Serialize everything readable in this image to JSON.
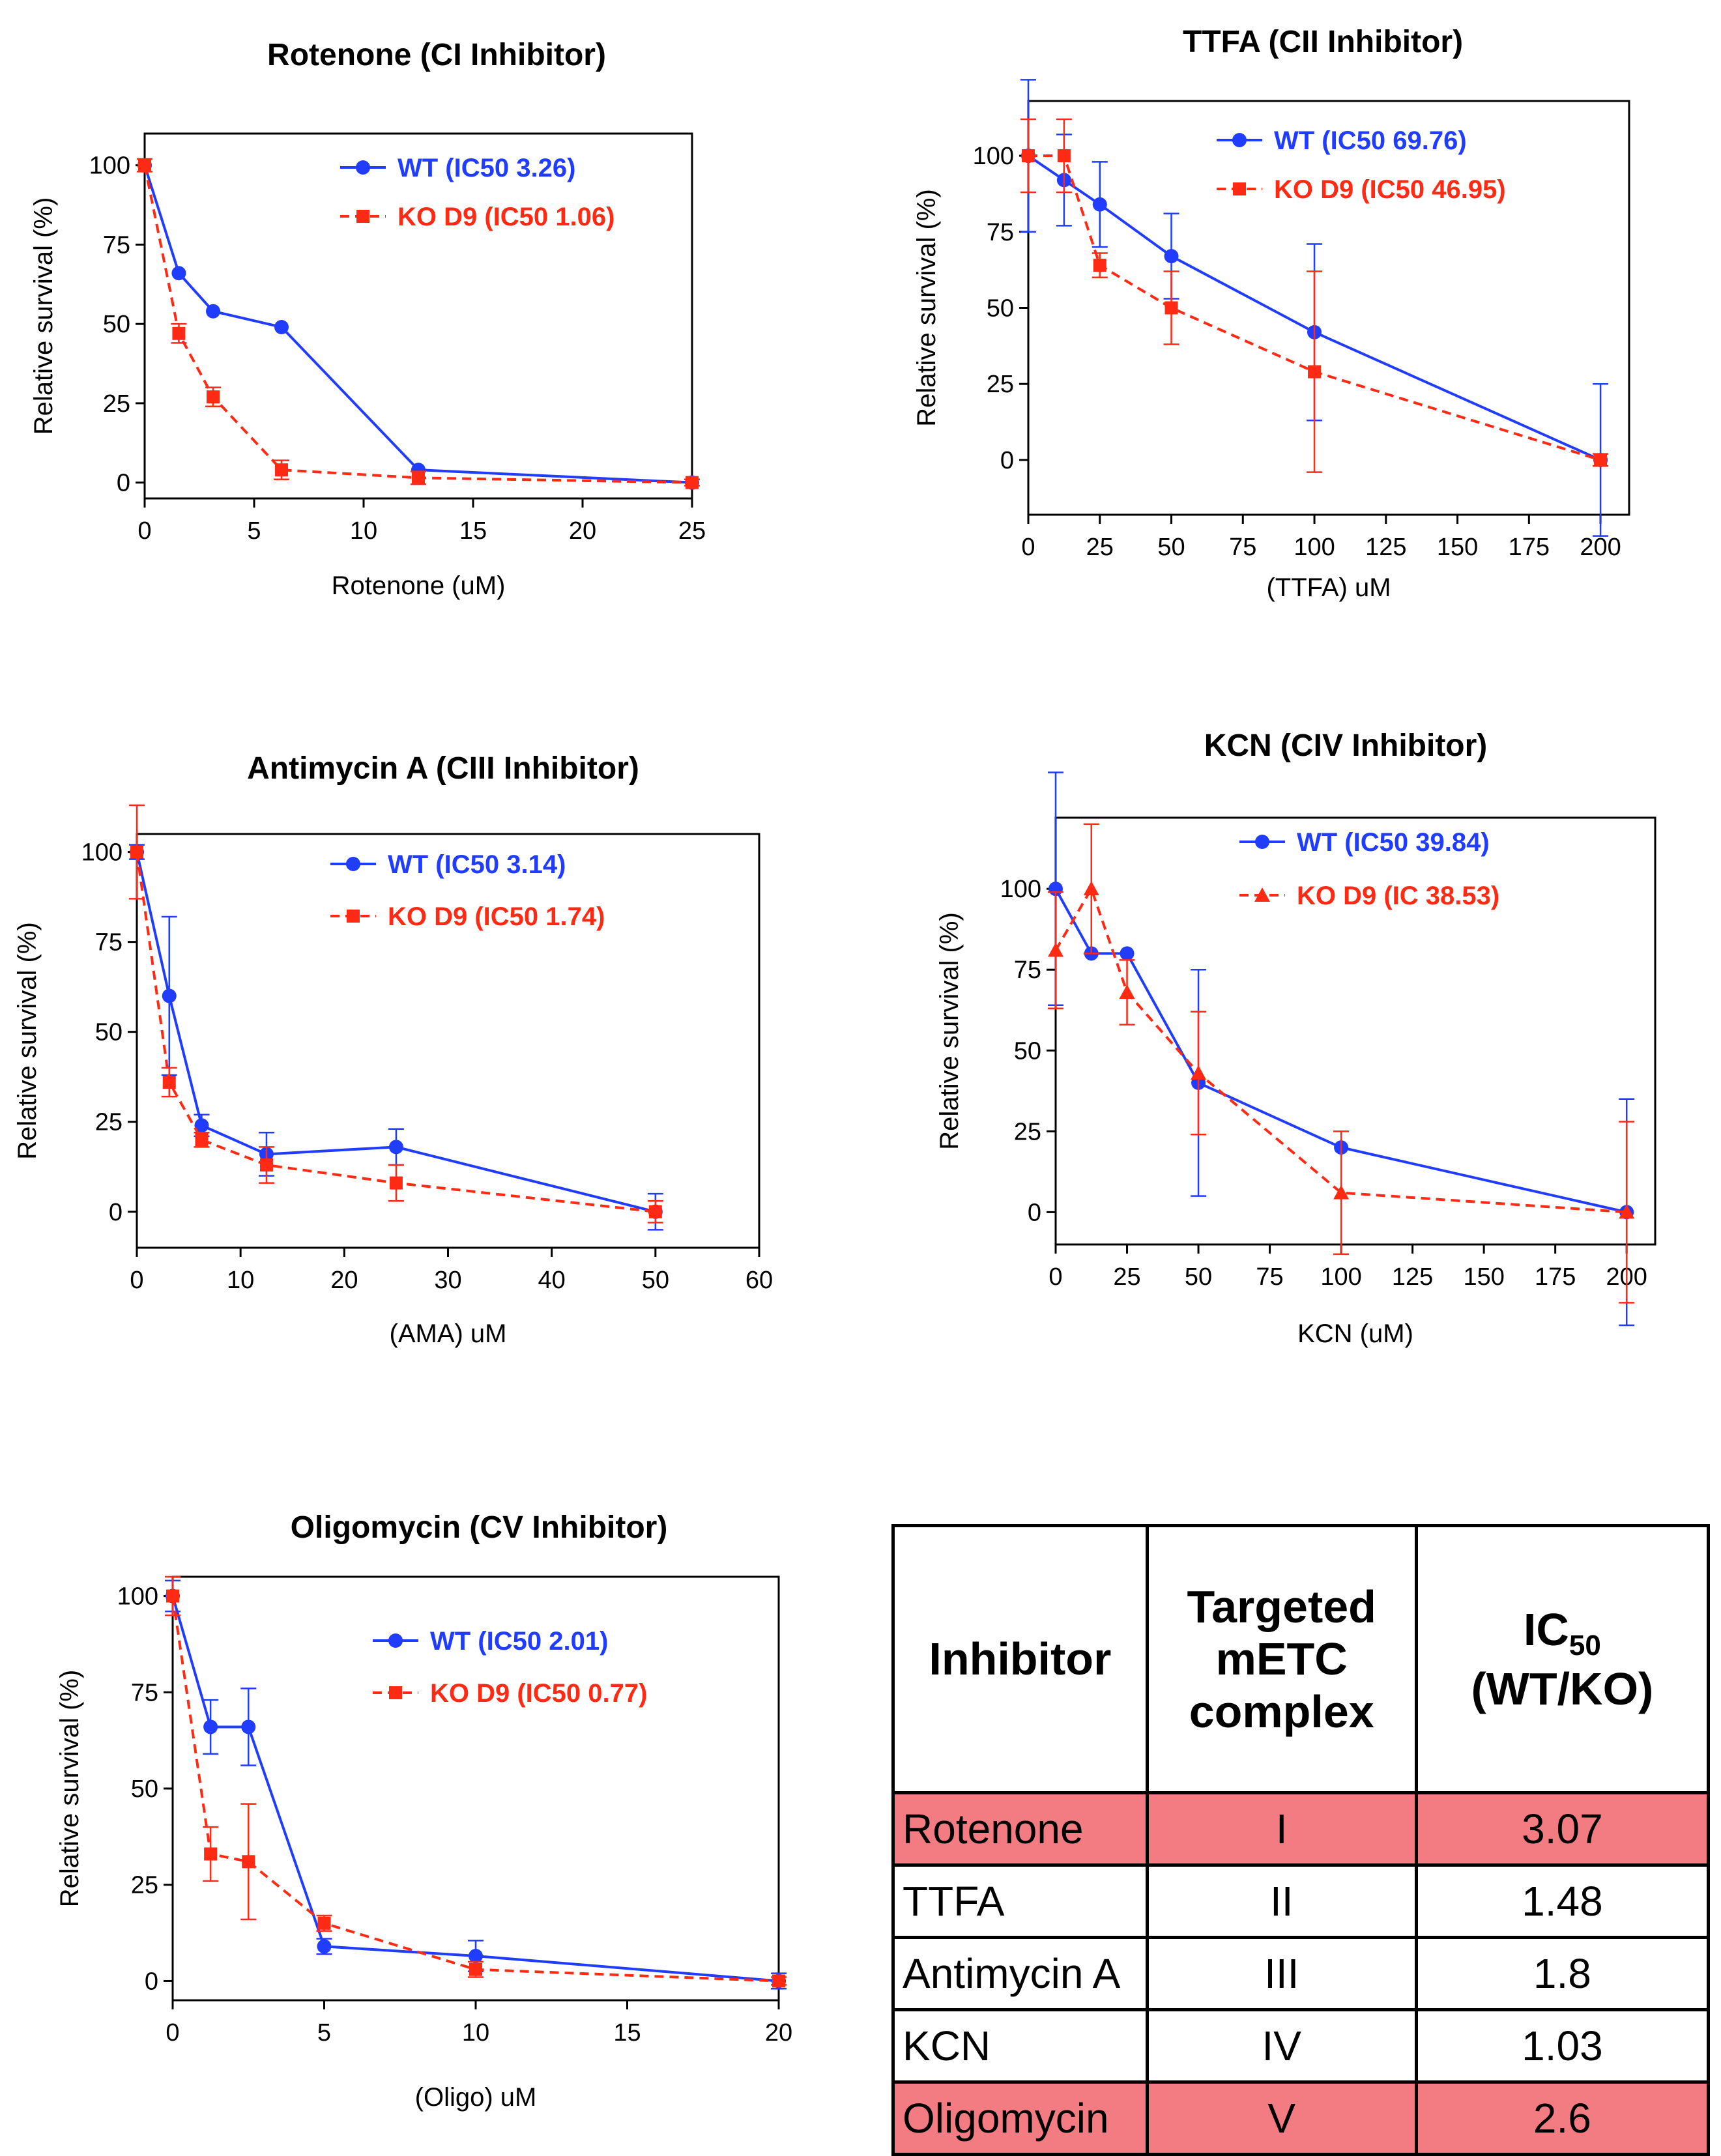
{
  "colors": {
    "wt": "#1f3cff",
    "ko": "#ff2a14",
    "highlight": "#f37c83"
  },
  "charts": [
    {
      "title": "Rotenone (CI Inhibitor)",
      "xlabel": "Rotenone (uM)",
      "ylabel": "Relative survival (%)",
      "chart_data": {
        "type": "line",
        "title": "Rotenone (CI Inhibitor)",
        "xlabel": "Rotenone (uM)",
        "ylabel": "Relative survival (%)",
        "xlim": [
          0,
          25
        ],
        "ylim": [
          -5,
          110
        ],
        "xticks": [
          0,
          5,
          10,
          15,
          20,
          25
        ],
        "yticks": [
          0,
          25,
          50,
          75,
          100
        ],
        "legend": "top-right",
        "series": [
          {
            "name": "WT (IC50 3.26)",
            "marker": "circle",
            "x": [
              0,
              1.56,
              3.125,
              6.25,
              12.5,
              25
            ],
            "y": [
              100,
              66,
              54,
              49,
              4,
              0
            ],
            "err": [
              0,
              0,
              0,
              0,
              0,
              0
            ]
          },
          {
            "name": "KO D9 (IC50 1.06)",
            "marker": "square",
            "x": [
              0,
              1.56,
              3.125,
              6.25,
              12.5,
              25
            ],
            "y": [
              100,
              47,
              27,
              4,
              1.5,
              0
            ],
            "err": [
              2,
              3,
              3,
              3,
              2,
              1
            ]
          }
        ]
      }
    },
    {
      "title": "TTFA (CII Inhibitor)",
      "xlabel": "(TTFA) uM",
      "ylabel": "Relative survival (%)",
      "chart_data": {
        "type": "line",
        "title": "TTFA (CII Inhibitor)",
        "xlabel": "(TTFA) uM",
        "ylabel": "Relative survival (%)",
        "xlim": [
          0,
          210
        ],
        "ylim": [
          -18,
          118
        ],
        "xticks": [
          0,
          25,
          50,
          75,
          100,
          125,
          150,
          175,
          200
        ],
        "yticks": [
          0,
          25,
          50,
          75,
          100
        ],
        "legend": "top-right",
        "series": [
          {
            "name": "WT (IC50 69.76)",
            "marker": "circle",
            "x": [
              0,
              12.5,
              25,
              50,
              100,
              200
            ],
            "y": [
              100,
              92,
              84,
              67,
              42,
              0
            ],
            "err": [
              25,
              15,
              14,
              14,
              29,
              25
            ]
          },
          {
            "name": "KO D9 (IC50 46.95)",
            "marker": "square",
            "x": [
              0,
              12.5,
              25,
              50,
              100,
              200
            ],
            "y": [
              100,
              100,
              64,
              50,
              29,
              0
            ],
            "err": [
              12,
              12,
              4,
              12,
              33,
              2
            ]
          }
        ]
      }
    },
    {
      "title": "Antimycin A (CIII Inhibitor)",
      "xlabel": "(AMA) uM",
      "ylabel": "Relative survival (%)",
      "chart_data": {
        "type": "line",
        "title": "Antimycin A (CIII Inhibitor)",
        "xlabel": "(AMA) uM",
        "ylabel": "Relative survival (%)",
        "xlim": [
          0,
          60
        ],
        "ylim": [
          -10,
          105
        ],
        "xticks": [
          0,
          10,
          20,
          30,
          40,
          50,
          60
        ],
        "yticks": [
          0,
          25,
          50,
          75,
          100
        ],
        "legend": "top-right",
        "series": [
          {
            "name": "WT (IC50 3.14)",
            "marker": "circle",
            "x": [
              0,
              3.125,
              6.25,
              12.5,
              25,
              50
            ],
            "y": [
              100,
              60,
              24,
              16,
              18,
              0
            ],
            "err": [
              2,
              22,
              3,
              6,
              5,
              5
            ]
          },
          {
            "name": "KO D9 (IC50 1.74)",
            "marker": "square",
            "x": [
              0,
              3.125,
              6.25,
              12.5,
              25,
              50
            ],
            "y": [
              100,
              36,
              20,
              13,
              8,
              0
            ],
            "err": [
              13,
              4,
              2,
              5,
              5,
              3
            ]
          }
        ]
      }
    },
    {
      "title": "KCN (CIV Inhibitor)",
      "xlabel": "KCN (uM)",
      "ylabel": "Relative survival (%)",
      "chart_data": {
        "type": "line",
        "title": "KCN (CIV Inhibitor)",
        "xlabel": "KCN (uM)",
        "ylabel": "Relative survival (%)",
        "xlim": [
          0,
          210
        ],
        "ylim": [
          -10,
          122
        ],
        "xticks": [
          0,
          25,
          50,
          75,
          100,
          125,
          150,
          175,
          200
        ],
        "yticks": [
          0,
          25,
          50,
          75,
          100
        ],
        "legend": "top-right",
        "series": [
          {
            "name": "WT (IC50 39.84)",
            "marker": "circle",
            "x": [
              0,
              12.5,
              25,
              50,
              100,
              200
            ],
            "y": [
              100,
              80,
              80,
              40,
              20,
              0
            ],
            "err": [
              36,
              0,
              0,
              35,
              0,
              35
            ]
          },
          {
            "name": "KO D9 (IC 38.53)",
            "marker": "triangle",
            "x": [
              0,
              12.5,
              25,
              50,
              100,
              200
            ],
            "y": [
              81,
              100,
              68,
              43,
              6,
              0
            ],
            "err": [
              18,
              20,
              10,
              19,
              19,
              28
            ]
          }
        ]
      }
    },
    {
      "title": "Oligomycin (CV Inhibitor)",
      "xlabel": "(Oligo) uM",
      "ylabel": "Relative survival (%)",
      "chart_data": {
        "type": "line",
        "title": "Oligomycin (CV Inhibitor)",
        "xlabel": "(Oligo) uM",
        "ylabel": "Relative survival (%)",
        "xlim": [
          0,
          20
        ],
        "ylim": [
          -5,
          105
        ],
        "xticks": [
          0,
          5,
          10,
          15,
          20
        ],
        "yticks": [
          0,
          25,
          50,
          75,
          100
        ],
        "legend": "top-right",
        "series": [
          {
            "name": "WT (IC50 2.01)",
            "marker": "circle",
            "x": [
              0,
              1.25,
              2.5,
              5,
              10,
              20
            ],
            "y": [
              100,
              66,
              66,
              9,
              6.5,
              0
            ],
            "err": [
              4,
              7,
              10,
              2,
              4,
              2
            ]
          },
          {
            "name": "KO D9 (IC50 0.77)",
            "marker": "square",
            "x": [
              0,
              1.25,
              2.5,
              5,
              10,
              20
            ],
            "y": [
              100,
              33,
              31,
              15,
              3,
              0
            ],
            "err": [
              5,
              7,
              15,
              2,
              2,
              1
            ]
          }
        ]
      }
    }
  ],
  "table": {
    "headers": [
      "Inhibitor",
      "Targeted mETC complex",
      "IC",
      "50",
      "(WT/KO)"
    ],
    "rows": [
      {
        "inhibitor": "Rotenone",
        "complex": "I",
        "ratio": "3.07",
        "highlight": true
      },
      {
        "inhibitor": "TTFA",
        "complex": "II",
        "ratio": "1.48",
        "highlight": false
      },
      {
        "inhibitor": "Antimycin A",
        "complex": "III",
        "ratio": "1.8",
        "highlight": false
      },
      {
        "inhibitor": "KCN",
        "complex": "IV",
        "ratio": "1.03",
        "highlight": false
      },
      {
        "inhibitor": "Oligomycin",
        "complex": "V",
        "ratio": "2.6",
        "highlight": true
      }
    ]
  }
}
